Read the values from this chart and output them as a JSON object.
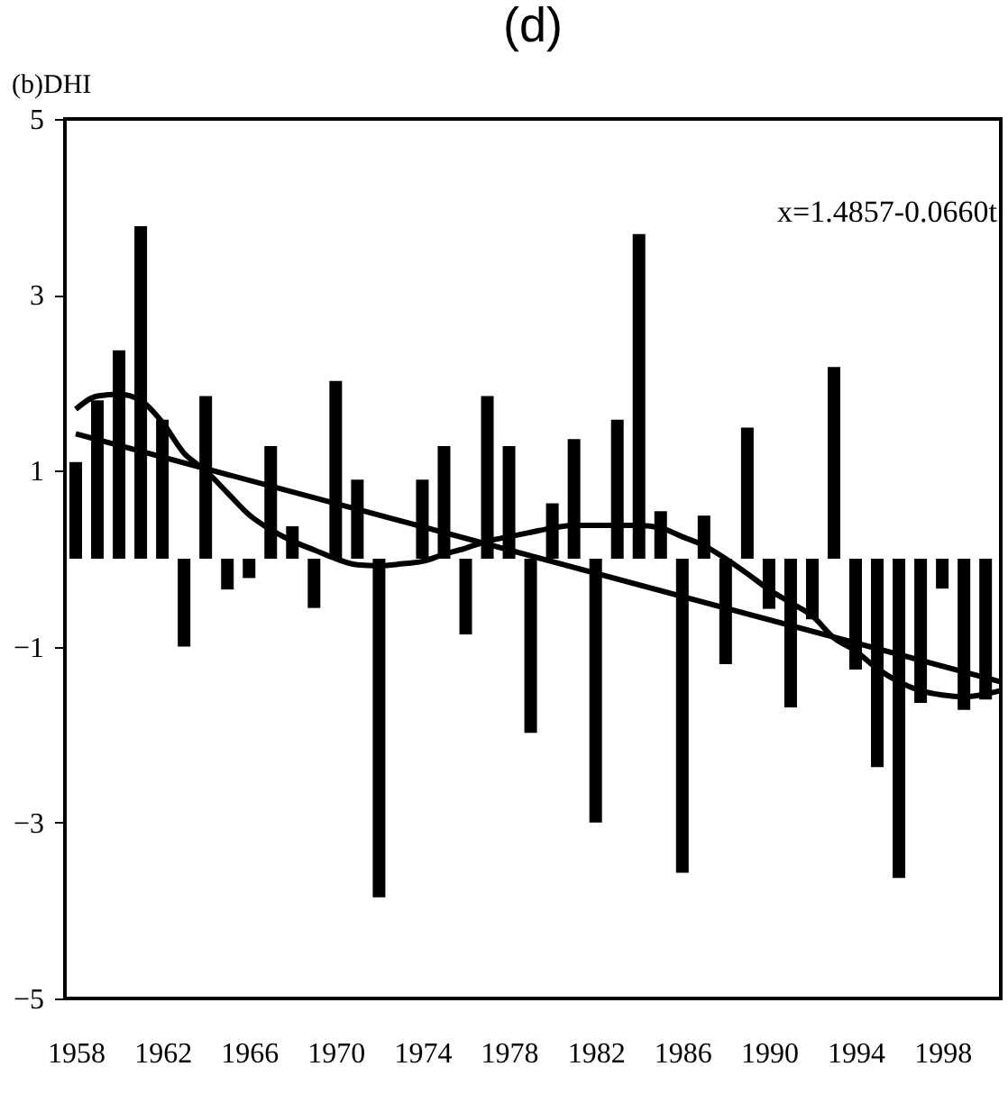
{
  "chart_data": {
    "type": "bar",
    "title": "(d)",
    "ylabel": "(b)DHI",
    "annotations": [
      "x=1.4857-0.0660t"
    ],
    "x": [
      1958,
      1959,
      1960,
      1961,
      1962,
      1963,
      1964,
      1965,
      1966,
      1967,
      1968,
      1969,
      1970,
      1971,
      1972,
      1973,
      1974,
      1975,
      1976,
      1977,
      1978,
      1979,
      1980,
      1981,
      1982,
      1983,
      1984,
      1985,
      1986,
      1987,
      1988,
      1989,
      1990,
      1991,
      1992,
      1993,
      1994,
      1995,
      1996,
      1997,
      1998,
      1999,
      2000
    ],
    "series": [
      {
        "color": "#000000",
        "values": [
          1.1,
          1.8,
          2.37,
          3.78,
          1.58,
          -1.0,
          1.85,
          -0.35,
          -0.22,
          1.28,
          0.37,
          -0.56,
          2.02,
          0.9,
          -3.85,
          0,
          0.9,
          1.28,
          -0.86,
          1.85,
          1.28,
          -1.98,
          0.63,
          1.36,
          -3.0,
          1.58,
          3.69,
          0.54,
          -3.57,
          0.49,
          -1.2,
          1.49,
          -0.57,
          -1.69,
          -0.69,
          2.18,
          -1.26,
          -2.37,
          -3.63,
          -1.64,
          -0.34,
          -1.72,
          -1.6
        ]
      },
      {
        "type": "line",
        "color": "#000000",
        "x": [
          1958,
          1959,
          1960,
          1961,
          1962,
          1963,
          1964,
          1965,
          1966,
          1967,
          1968,
          1969,
          1970,
          1971,
          1972,
          1973,
          1974,
          1975,
          1976,
          1977,
          1978,
          1979,
          1980,
          1981,
          1982,
          1983,
          1984,
          1985,
          1986,
          1987,
          1988,
          1989,
          1990,
          1991,
          1992,
          1993,
          1994,
          1995,
          1996,
          1997,
          1998,
          1999,
          2000.7
        ],
        "values": [
          1.7,
          1.85,
          1.87,
          1.8,
          1.55,
          1.2,
          1.0,
          0.75,
          0.5,
          0.33,
          0.2,
          0.1,
          0.0,
          -0.07,
          -0.08,
          -0.06,
          -0.03,
          0.05,
          0.12,
          0.2,
          0.25,
          0.3,
          0.35,
          0.38,
          0.38,
          0.38,
          0.38,
          0.35,
          0.25,
          0.15,
          0.0,
          -0.17,
          -0.35,
          -0.5,
          -0.65,
          -0.9,
          -1.05,
          -1.25,
          -1.4,
          -1.5,
          -1.55,
          -1.57,
          -1.5
        ]
      },
      {
        "type": "line",
        "color": "#000000",
        "x": [
          1958,
          2000.7
        ],
        "values": [
          1.42,
          -1.4
        ]
      }
    ],
    "xlim": [
      1957.5,
      2000.7
    ],
    "ylim": [
      -5,
      5
    ],
    "xticks": [
      1958,
      1962,
      1966,
      1970,
      1974,
      1978,
      1982,
      1986,
      1990,
      1994,
      1998
    ],
    "yticks": [
      5,
      3,
      1,
      -1,
      -3,
      -5
    ],
    "grid": false,
    "marker": "none",
    "line_style": "solid"
  }
}
